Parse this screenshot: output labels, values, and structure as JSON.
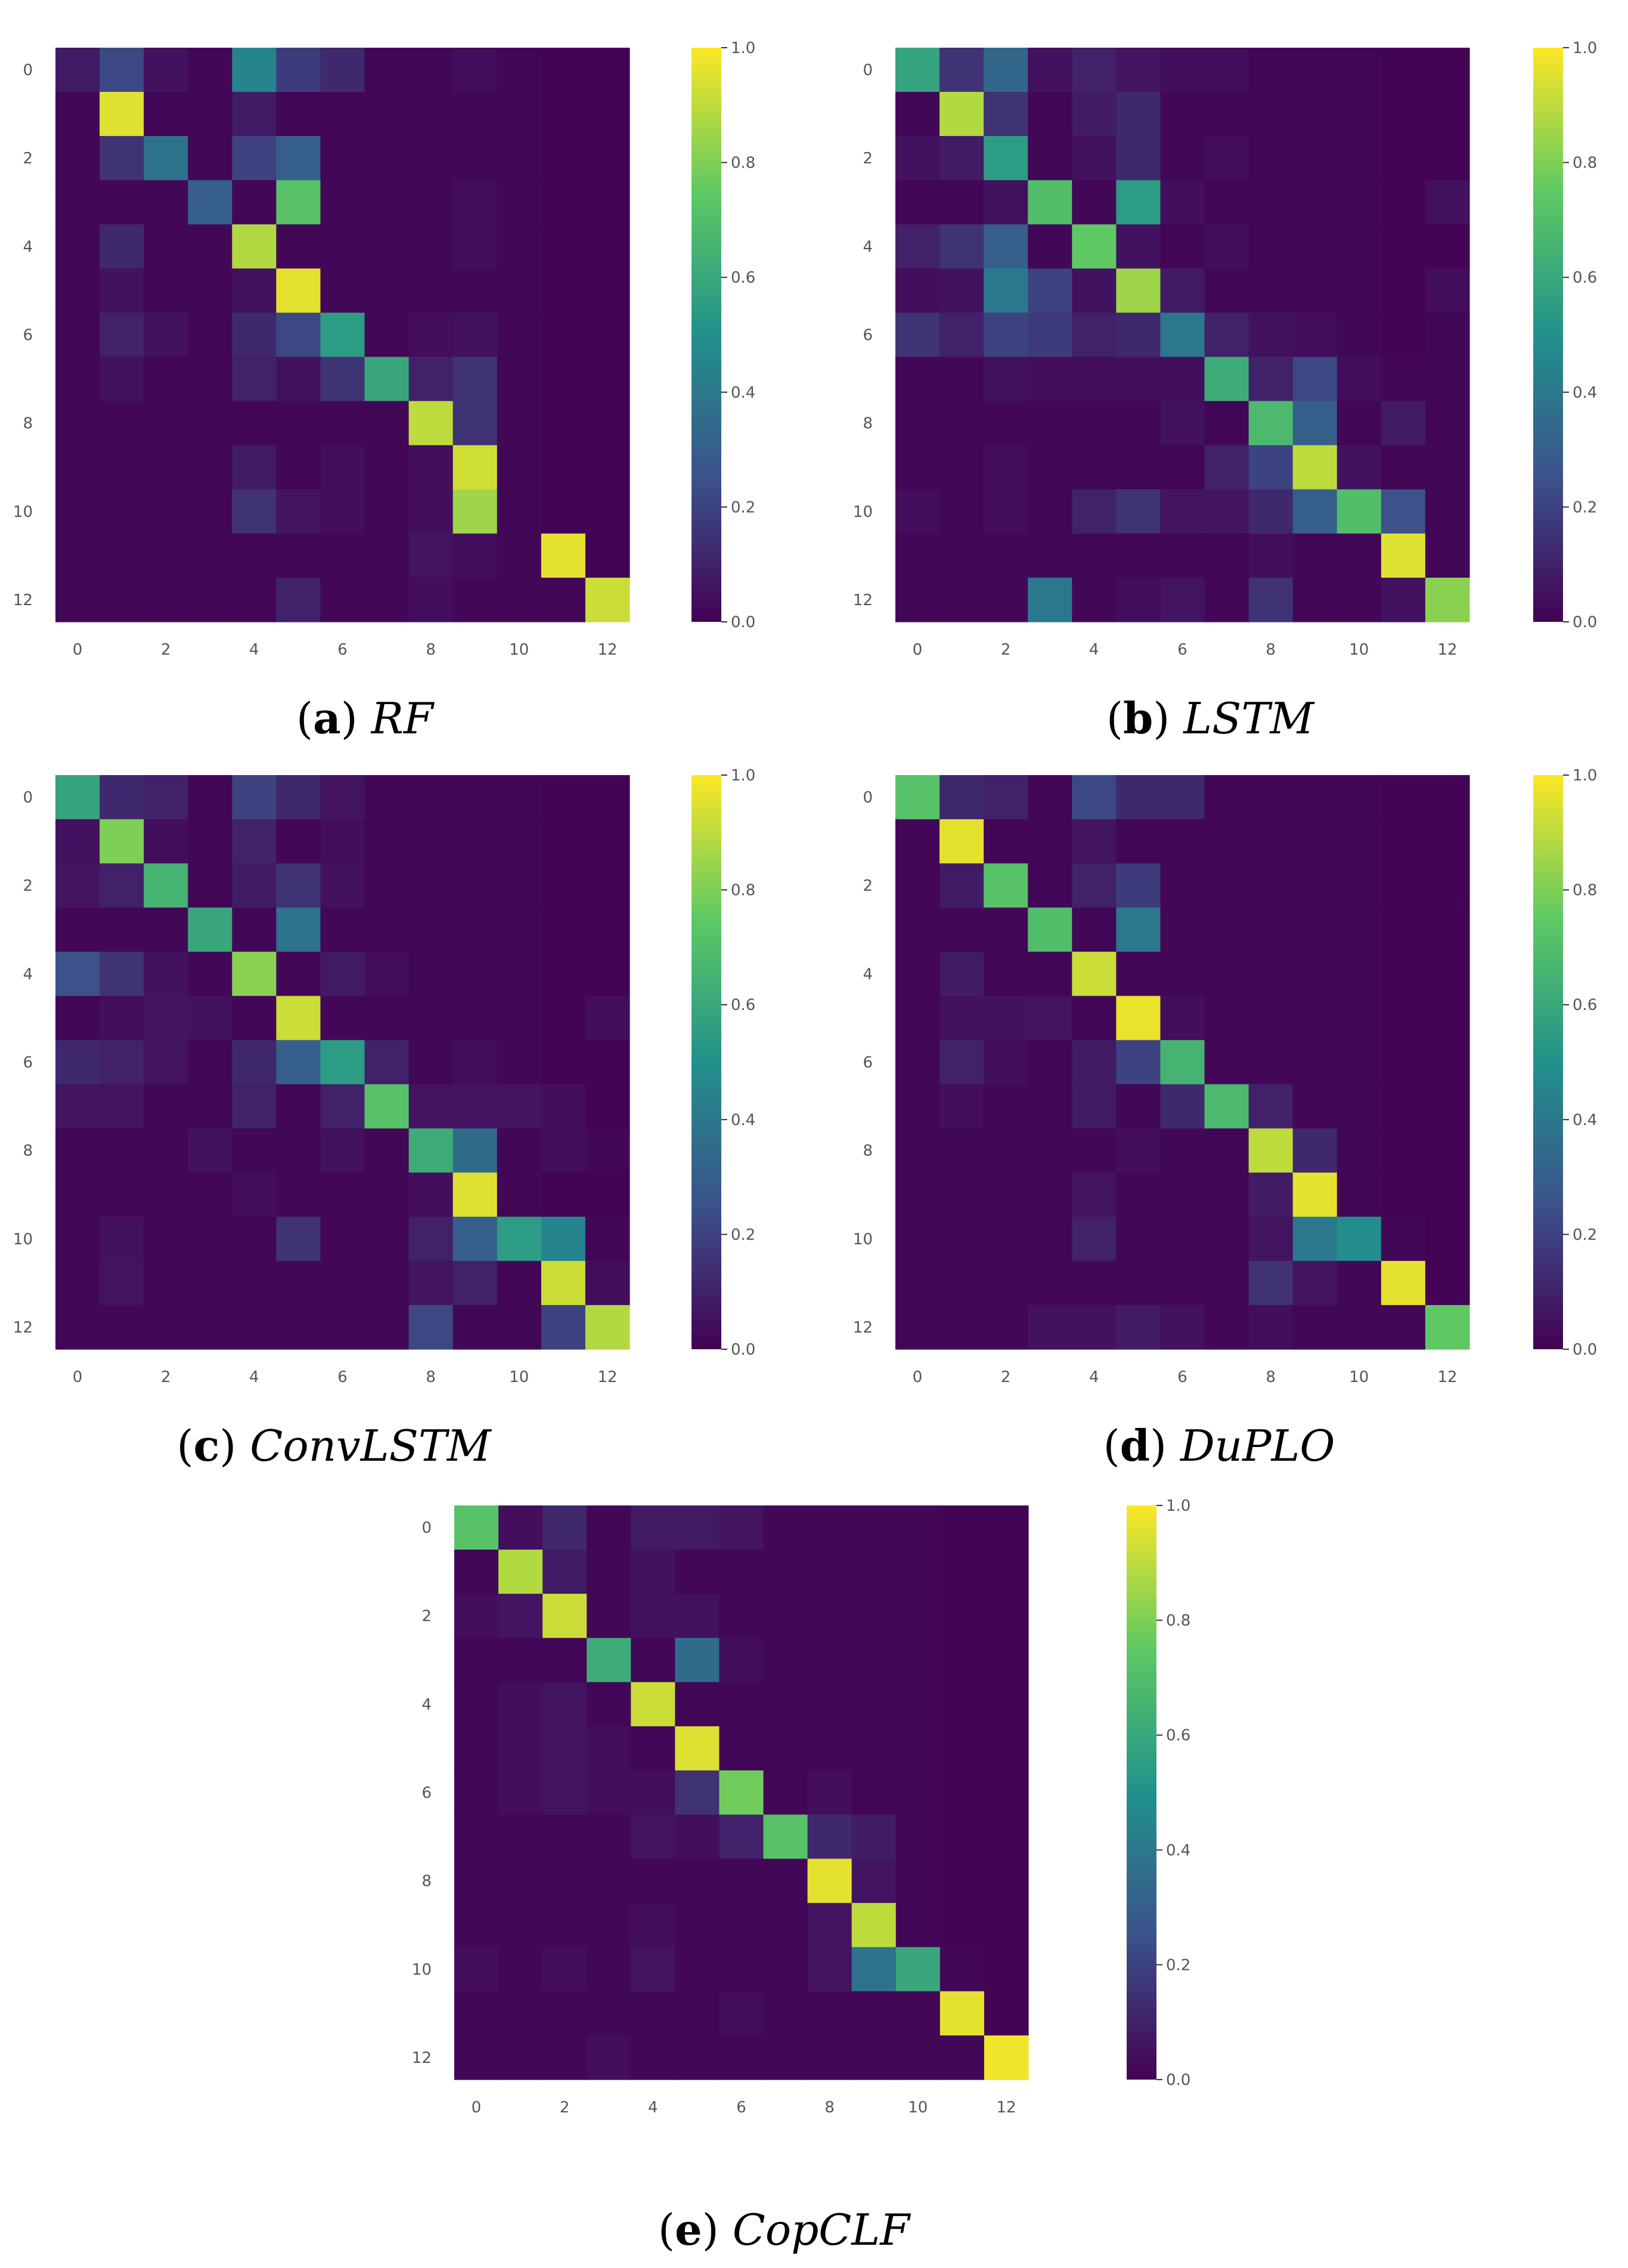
{
  "figure": {
    "background": "#ffffff"
  },
  "colormap": {
    "name": "viridis",
    "stops": [
      "#440154",
      "#3b528b",
      "#21918c",
      "#5ec962",
      "#fde725"
    ]
  },
  "chart_data": [
    {
      "id": "a",
      "type": "heatmap",
      "caption_letter": "a",
      "caption_text": "RF",
      "x_ticks": [
        "0",
        "2",
        "4",
        "6",
        "8",
        "10",
        "12"
      ],
      "y_ticks": [
        "0",
        "2",
        "4",
        "6",
        "8",
        "10",
        "12"
      ],
      "colorbar_ticks": [
        "1.0",
        "0.8",
        "0.6",
        "0.4",
        "0.2",
        "0.0"
      ],
      "vmin": 0,
      "vmax": 1,
      "matrix": [
        [
          0.08,
          0.22,
          0.05,
          0.02,
          0.45,
          0.18,
          0.12,
          0.02,
          0.02,
          0.04,
          0.02,
          0.01,
          0.01
        ],
        [
          0.02,
          0.95,
          0.02,
          0.02,
          0.08,
          0.02,
          0.02,
          0.02,
          0.02,
          0.02,
          0.02,
          0.01,
          0.01
        ],
        [
          0.02,
          0.15,
          0.38,
          0.02,
          0.2,
          0.3,
          0.02,
          0.02,
          0.02,
          0.02,
          0.02,
          0.01,
          0.01
        ],
        [
          0.02,
          0.02,
          0.02,
          0.3,
          0.02,
          0.72,
          0.02,
          0.02,
          0.02,
          0.04,
          0.02,
          0.01,
          0.01
        ],
        [
          0.02,
          0.12,
          0.02,
          0.02,
          0.88,
          0.02,
          0.02,
          0.02,
          0.02,
          0.04,
          0.02,
          0.01,
          0.01
        ],
        [
          0.02,
          0.05,
          0.02,
          0.02,
          0.05,
          0.96,
          0.02,
          0.02,
          0.02,
          0.02,
          0.02,
          0.01,
          0.01
        ],
        [
          0.02,
          0.1,
          0.05,
          0.02,
          0.12,
          0.22,
          0.55,
          0.02,
          0.04,
          0.05,
          0.02,
          0.01,
          0.01
        ],
        [
          0.02,
          0.05,
          0.02,
          0.02,
          0.1,
          0.05,
          0.15,
          0.6,
          0.1,
          0.15,
          0.02,
          0.01,
          0.01
        ],
        [
          0.02,
          0.02,
          0.02,
          0.02,
          0.02,
          0.02,
          0.02,
          0.02,
          0.9,
          0.15,
          0.02,
          0.01,
          0.01
        ],
        [
          0.02,
          0.02,
          0.02,
          0.02,
          0.08,
          0.02,
          0.04,
          0.02,
          0.04,
          0.93,
          0.02,
          0.01,
          0.01
        ],
        [
          0.02,
          0.02,
          0.02,
          0.02,
          0.15,
          0.06,
          0.04,
          0.02,
          0.04,
          0.85,
          0.02,
          0.01,
          0.01
        ],
        [
          0.02,
          0.02,
          0.02,
          0.02,
          0.02,
          0.02,
          0.02,
          0.02,
          0.06,
          0.04,
          0.02,
          0.96,
          0.01
        ],
        [
          0.02,
          0.02,
          0.02,
          0.02,
          0.02,
          0.1,
          0.02,
          0.02,
          0.04,
          0.02,
          0.02,
          0.02,
          0.92
        ]
      ]
    },
    {
      "id": "b",
      "type": "heatmap",
      "caption_letter": "b",
      "caption_text": "LSTM",
      "x_ticks": [
        "0",
        "2",
        "4",
        "6",
        "8",
        "10",
        "12"
      ],
      "y_ticks": [
        "0",
        "2",
        "4",
        "6",
        "8",
        "10",
        "12"
      ],
      "colorbar_ticks": [
        "1.0",
        "0.8",
        "0.6",
        "0.4",
        "0.2",
        "0.0"
      ],
      "vmin": 0,
      "vmax": 1,
      "matrix": [
        [
          0.58,
          0.15,
          0.33,
          0.05,
          0.1,
          0.06,
          0.04,
          0.04,
          0.02,
          0.02,
          0.02,
          0.01,
          0.01
        ],
        [
          0.02,
          0.88,
          0.15,
          0.02,
          0.08,
          0.12,
          0.02,
          0.02,
          0.02,
          0.02,
          0.02,
          0.01,
          0.01
        ],
        [
          0.05,
          0.08,
          0.55,
          0.02,
          0.05,
          0.12,
          0.02,
          0.04,
          0.02,
          0.02,
          0.02,
          0.01,
          0.01
        ],
        [
          0.02,
          0.02,
          0.05,
          0.7,
          0.02,
          0.55,
          0.04,
          0.02,
          0.02,
          0.02,
          0.02,
          0.01,
          0.05
        ],
        [
          0.1,
          0.15,
          0.3,
          0.02,
          0.75,
          0.05,
          0.02,
          0.04,
          0.02,
          0.02,
          0.02,
          0.01,
          0.01
        ],
        [
          0.04,
          0.05,
          0.4,
          0.2,
          0.05,
          0.85,
          0.08,
          0.02,
          0.02,
          0.02,
          0.02,
          0.01,
          0.04
        ],
        [
          0.15,
          0.1,
          0.2,
          0.18,
          0.1,
          0.12,
          0.4,
          0.1,
          0.05,
          0.04,
          0.02,
          0.01,
          0.02
        ],
        [
          0.02,
          0.02,
          0.05,
          0.04,
          0.04,
          0.04,
          0.04,
          0.62,
          0.1,
          0.22,
          0.04,
          0.02,
          0.02
        ],
        [
          0.02,
          0.02,
          0.02,
          0.02,
          0.02,
          0.02,
          0.05,
          0.02,
          0.68,
          0.3,
          0.02,
          0.08,
          0.02
        ],
        [
          0.02,
          0.02,
          0.04,
          0.02,
          0.02,
          0.02,
          0.02,
          0.1,
          0.2,
          0.9,
          0.05,
          0.02,
          0.02
        ],
        [
          0.04,
          0.02,
          0.04,
          0.02,
          0.1,
          0.15,
          0.06,
          0.06,
          0.12,
          0.3,
          0.7,
          0.25,
          0.02
        ],
        [
          0.02,
          0.02,
          0.02,
          0.02,
          0.02,
          0.02,
          0.02,
          0.02,
          0.04,
          0.02,
          0.02,
          0.95,
          0.02
        ],
        [
          0.02,
          0.02,
          0.02,
          0.4,
          0.02,
          0.04,
          0.06,
          0.02,
          0.15,
          0.02,
          0.02,
          0.05,
          0.82
        ]
      ]
    },
    {
      "id": "c",
      "type": "heatmap",
      "caption_letter": "c",
      "caption_text": "ConvLSTM",
      "x_ticks": [
        "0",
        "2",
        "4",
        "6",
        "8",
        "10",
        "12"
      ],
      "y_ticks": [
        "0",
        "2",
        "4",
        "6",
        "8",
        "10",
        "12"
      ],
      "colorbar_ticks": [
        "1.0",
        "0.8",
        "0.6",
        "0.4",
        "0.2",
        "0.0"
      ],
      "vmin": 0,
      "vmax": 1,
      "matrix": [
        [
          0.58,
          0.12,
          0.1,
          0.02,
          0.2,
          0.12,
          0.06,
          0.02,
          0.02,
          0.02,
          0.02,
          0.01,
          0.01
        ],
        [
          0.05,
          0.8,
          0.04,
          0.02,
          0.1,
          0.02,
          0.04,
          0.02,
          0.02,
          0.02,
          0.02,
          0.01,
          0.01
        ],
        [
          0.06,
          0.1,
          0.65,
          0.02,
          0.08,
          0.15,
          0.05,
          0.02,
          0.02,
          0.02,
          0.02,
          0.01,
          0.01
        ],
        [
          0.02,
          0.02,
          0.02,
          0.6,
          0.02,
          0.38,
          0.02,
          0.02,
          0.02,
          0.02,
          0.02,
          0.01,
          0.01
        ],
        [
          0.25,
          0.15,
          0.05,
          0.02,
          0.82,
          0.02,
          0.08,
          0.04,
          0.02,
          0.02,
          0.02,
          0.01,
          0.01
        ],
        [
          0.02,
          0.04,
          0.06,
          0.05,
          0.02,
          0.92,
          0.02,
          0.02,
          0.02,
          0.02,
          0.02,
          0.01,
          0.04
        ],
        [
          0.12,
          0.1,
          0.06,
          0.02,
          0.12,
          0.3,
          0.55,
          0.1,
          0.02,
          0.04,
          0.02,
          0.01,
          0.01
        ],
        [
          0.06,
          0.06,
          0.02,
          0.02,
          0.1,
          0.02,
          0.1,
          0.72,
          0.06,
          0.06,
          0.06,
          0.04,
          0.01
        ],
        [
          0.02,
          0.02,
          0.02,
          0.05,
          0.02,
          0.02,
          0.05,
          0.02,
          0.62,
          0.35,
          0.02,
          0.04,
          0.02
        ],
        [
          0.02,
          0.02,
          0.02,
          0.02,
          0.04,
          0.02,
          0.02,
          0.02,
          0.04,
          0.95,
          0.02,
          0.01,
          0.01
        ],
        [
          0.02,
          0.05,
          0.02,
          0.02,
          0.02,
          0.15,
          0.02,
          0.02,
          0.1,
          0.3,
          0.55,
          0.45,
          0.02
        ],
        [
          0.02,
          0.06,
          0.02,
          0.02,
          0.02,
          0.02,
          0.02,
          0.02,
          0.06,
          0.1,
          0.02,
          0.92,
          0.04
        ],
        [
          0.02,
          0.02,
          0.02,
          0.02,
          0.02,
          0.02,
          0.02,
          0.02,
          0.22,
          0.02,
          0.02,
          0.2,
          0.88
        ]
      ]
    },
    {
      "id": "d",
      "type": "heatmap",
      "caption_letter": "d",
      "caption_text": "DuPLO",
      "x_ticks": [
        "0",
        "2",
        "4",
        "6",
        "8",
        "10",
        "12"
      ],
      "y_ticks": [
        "0",
        "2",
        "4",
        "6",
        "8",
        "10",
        "12"
      ],
      "colorbar_ticks": [
        "1.0",
        "0.8",
        "0.6",
        "0.4",
        "0.2",
        "0.0"
      ],
      "vmin": 0,
      "vmax": 1,
      "matrix": [
        [
          0.72,
          0.12,
          0.1,
          0.02,
          0.22,
          0.12,
          0.12,
          0.02,
          0.02,
          0.02,
          0.02,
          0.01,
          0.01
        ],
        [
          0.02,
          0.96,
          0.02,
          0.02,
          0.06,
          0.02,
          0.02,
          0.02,
          0.02,
          0.02,
          0.02,
          0.01,
          0.01
        ],
        [
          0.02,
          0.08,
          0.72,
          0.02,
          0.1,
          0.18,
          0.02,
          0.02,
          0.02,
          0.02,
          0.02,
          0.01,
          0.01
        ],
        [
          0.02,
          0.02,
          0.02,
          0.7,
          0.02,
          0.4,
          0.02,
          0.02,
          0.02,
          0.02,
          0.02,
          0.01,
          0.01
        ],
        [
          0.02,
          0.08,
          0.02,
          0.02,
          0.92,
          0.02,
          0.02,
          0.02,
          0.02,
          0.02,
          0.02,
          0.01,
          0.01
        ],
        [
          0.02,
          0.05,
          0.05,
          0.06,
          0.02,
          0.97,
          0.04,
          0.02,
          0.02,
          0.02,
          0.02,
          0.01,
          0.01
        ],
        [
          0.02,
          0.1,
          0.04,
          0.02,
          0.08,
          0.2,
          0.65,
          0.02,
          0.02,
          0.02,
          0.02,
          0.01,
          0.01
        ],
        [
          0.02,
          0.04,
          0.02,
          0.02,
          0.08,
          0.02,
          0.12,
          0.68,
          0.1,
          0.02,
          0.02,
          0.01,
          0.01
        ],
        [
          0.02,
          0.02,
          0.02,
          0.02,
          0.02,
          0.04,
          0.02,
          0.02,
          0.9,
          0.12,
          0.02,
          0.01,
          0.01
        ],
        [
          0.02,
          0.02,
          0.02,
          0.02,
          0.06,
          0.02,
          0.02,
          0.02,
          0.08,
          0.96,
          0.02,
          0.01,
          0.01
        ],
        [
          0.02,
          0.02,
          0.02,
          0.02,
          0.1,
          0.02,
          0.02,
          0.02,
          0.06,
          0.4,
          0.48,
          0.02,
          0.01
        ],
        [
          0.02,
          0.02,
          0.02,
          0.02,
          0.02,
          0.02,
          0.02,
          0.02,
          0.15,
          0.06,
          0.02,
          0.96,
          0.01
        ],
        [
          0.02,
          0.02,
          0.02,
          0.05,
          0.05,
          0.08,
          0.05,
          0.02,
          0.04,
          0.02,
          0.02,
          0.02,
          0.75
        ]
      ]
    },
    {
      "id": "e",
      "type": "heatmap",
      "caption_letter": "e",
      "caption_text": "CopCLF",
      "x_ticks": [
        "0",
        "2",
        "4",
        "6",
        "8",
        "10",
        "12"
      ],
      "y_ticks": [
        "0",
        "2",
        "4",
        "6",
        "8",
        "10",
        "12"
      ],
      "colorbar_ticks": [
        "1.0",
        "0.8",
        "0.6",
        "0.4",
        "0.2",
        "0.0"
      ],
      "vmin": 0,
      "vmax": 1,
      "matrix": [
        [
          0.72,
          0.04,
          0.12,
          0.02,
          0.08,
          0.08,
          0.06,
          0.02,
          0.02,
          0.02,
          0.02,
          0.01,
          0.01
        ],
        [
          0.02,
          0.88,
          0.08,
          0.02,
          0.05,
          0.02,
          0.02,
          0.02,
          0.02,
          0.02,
          0.02,
          0.01,
          0.01
        ],
        [
          0.04,
          0.06,
          0.92,
          0.02,
          0.05,
          0.05,
          0.02,
          0.02,
          0.02,
          0.02,
          0.02,
          0.01,
          0.01
        ],
        [
          0.02,
          0.02,
          0.02,
          0.62,
          0.02,
          0.35,
          0.04,
          0.02,
          0.02,
          0.02,
          0.02,
          0.01,
          0.01
        ],
        [
          0.02,
          0.04,
          0.06,
          0.02,
          0.92,
          0.02,
          0.02,
          0.02,
          0.02,
          0.02,
          0.02,
          0.01,
          0.01
        ],
        [
          0.02,
          0.04,
          0.06,
          0.04,
          0.02,
          0.95,
          0.02,
          0.02,
          0.02,
          0.02,
          0.02,
          0.01,
          0.01
        ],
        [
          0.02,
          0.04,
          0.06,
          0.04,
          0.04,
          0.15,
          0.78,
          0.02,
          0.04,
          0.02,
          0.02,
          0.01,
          0.01
        ],
        [
          0.02,
          0.02,
          0.02,
          0.02,
          0.06,
          0.04,
          0.1,
          0.72,
          0.12,
          0.08,
          0.02,
          0.01,
          0.01
        ],
        [
          0.02,
          0.02,
          0.02,
          0.02,
          0.02,
          0.02,
          0.02,
          0.02,
          0.96,
          0.06,
          0.02,
          0.01,
          0.01
        ],
        [
          0.02,
          0.02,
          0.02,
          0.02,
          0.04,
          0.02,
          0.02,
          0.02,
          0.06,
          0.9,
          0.02,
          0.01,
          0.01
        ],
        [
          0.04,
          0.02,
          0.04,
          0.02,
          0.06,
          0.02,
          0.02,
          0.02,
          0.06,
          0.38,
          0.6,
          0.02,
          0.01
        ],
        [
          0.02,
          0.02,
          0.02,
          0.02,
          0.02,
          0.02,
          0.04,
          0.02,
          0.02,
          0.02,
          0.02,
          0.96,
          0.01
        ],
        [
          0.02,
          0.02,
          0.02,
          0.04,
          0.02,
          0.02,
          0.02,
          0.02,
          0.02,
          0.02,
          0.02,
          0.02,
          0.98
        ]
      ]
    }
  ]
}
